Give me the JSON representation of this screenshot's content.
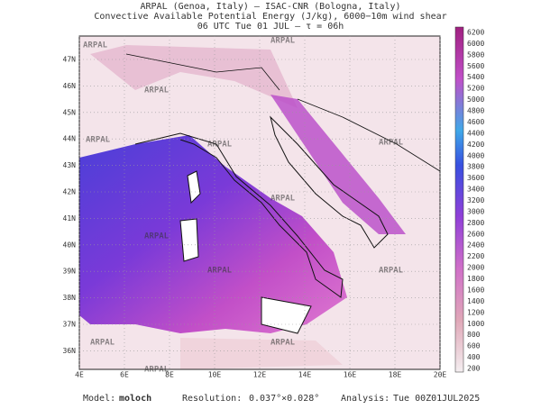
{
  "header": {
    "line1": "ARPAL (Genoa, Italy)  —  ISAC-CNR (Bologna, Italy)",
    "line2": "Convective Available Potential Energy (J/kg), 6000−10m wind shear",
    "line3": "06 UTC Tue 01 JUL  —  τ = 06h"
  },
  "map": {
    "watermark": "ARPAL",
    "lat_labels": [
      "47N",
      "46N",
      "45N",
      "44N",
      "43N",
      "42N",
      "41N",
      "40N",
      "39N",
      "38N",
      "37N",
      "36N"
    ],
    "lon_labels": [
      "4E",
      "6E",
      "8E",
      "10E",
      "12E",
      "14E",
      "16E",
      "18E",
      "20E"
    ]
  },
  "colorbar": {
    "ticks": [
      6200,
      6000,
      5800,
      5600,
      5400,
      5200,
      5000,
      4800,
      4600,
      4400,
      4200,
      4000,
      3800,
      3600,
      3400,
      3200,
      3000,
      2800,
      2600,
      2400,
      2200,
      2000,
      1800,
      1600,
      1400,
      1200,
      1000,
      800,
      600,
      400,
      200
    ]
  },
  "footer": {
    "model_label": "Model:",
    "model": "moloch",
    "resolution_label": "Resolution:",
    "resolution": "0.037°×0.028°",
    "analysis_label": "Analysis:",
    "analysis": "Tue 00Z01JUL2025"
  }
}
